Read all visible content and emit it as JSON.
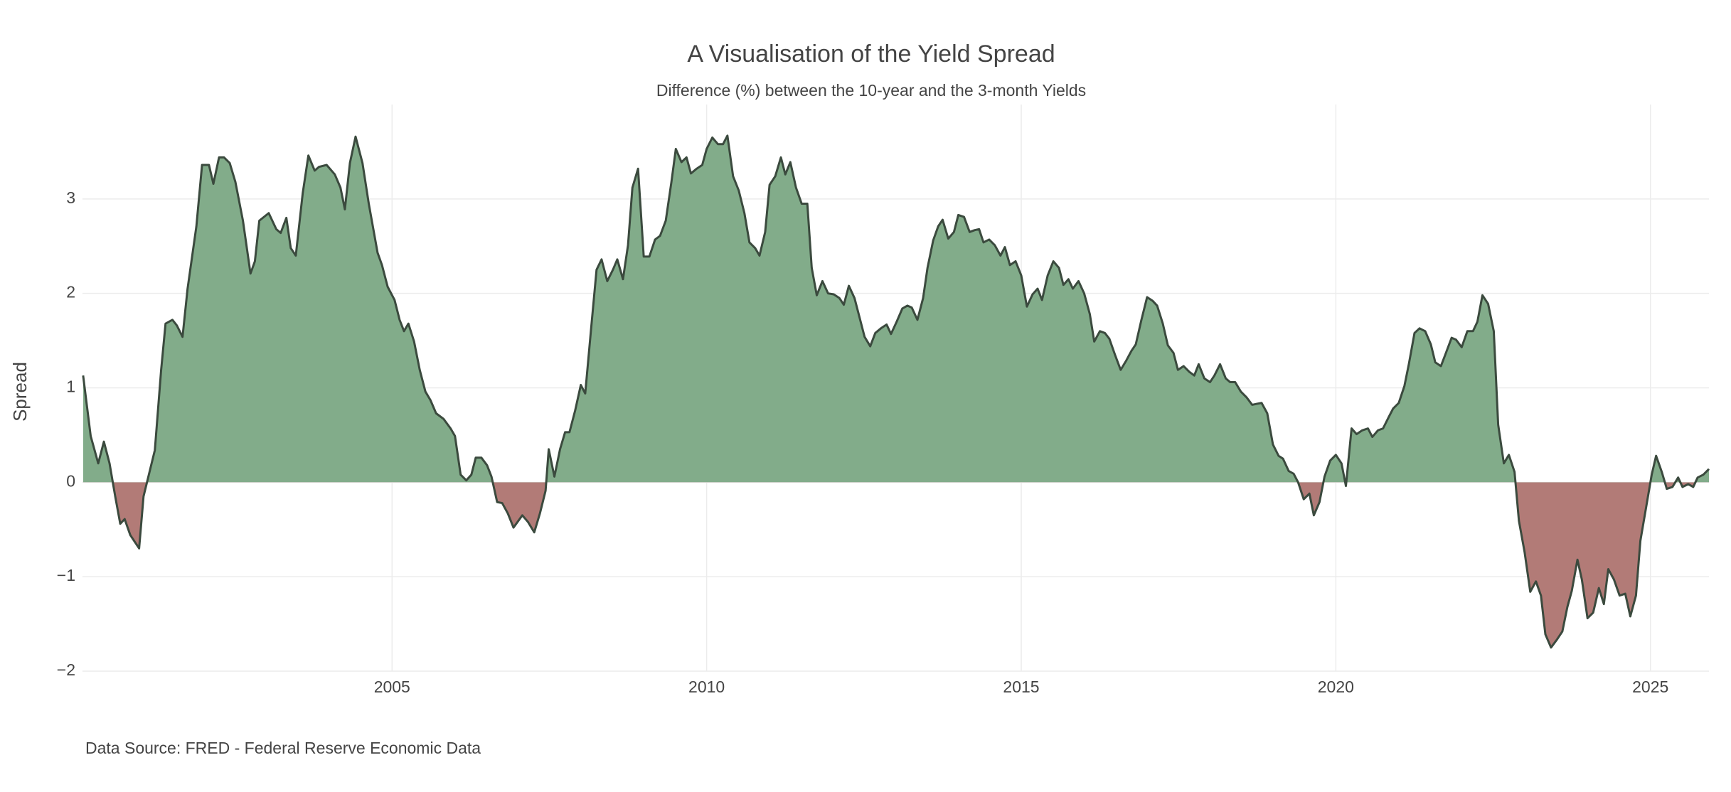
{
  "chart_data": {
    "type": "area",
    "title": "A Visualisation of the Yield Spread",
    "subtitle": "Difference (%) between the 10-year and the 3-month Yields",
    "y_label": "Spread",
    "source": "Data Source: FRED - Federal Reserve Economic Data",
    "positive_color": "#82ac8a",
    "negative_color": "#b27b77",
    "line_color": "#3b4a3e",
    "grid": true,
    "xlim": [
      2000.08,
      2025.93
    ],
    "xticks": [
      2005,
      2010,
      2015,
      2020,
      2025
    ],
    "ylim": [
      -2,
      4
    ],
    "yticks": [
      {
        "value": -2,
        "label": "−2"
      },
      {
        "value": -1,
        "label": "−1"
      },
      0,
      1,
      2,
      3
    ],
    "x": [
      2000.09,
      2000.21,
      2000.33,
      2000.42,
      2000.51,
      2000.6,
      2000.68,
      2000.75,
      2000.84,
      2000.98,
      2001.05,
      2001.23,
      2001.33,
      2001.4,
      2001.51,
      2001.58,
      2001.67,
      2001.75,
      2001.89,
      2001.98,
      2002.09,
      2002.16,
      2002.25,
      2002.33,
      2002.42,
      2002.51,
      2002.63,
      2002.75,
      2002.82,
      2002.89,
      2003.04,
      2003.16,
      2003.23,
      2003.32,
      2003.39,
      2003.47,
      2003.58,
      2003.67,
      2003.77,
      2003.84,
      2003.96,
      2004.09,
      2004.18,
      2004.25,
      2004.33,
      2004.42,
      2004.53,
      2004.63,
      2004.77,
      2004.84,
      2004.93,
      2005.04,
      2005.12,
      2005.19,
      2005.26,
      2005.35,
      2005.44,
      2005.53,
      2005.61,
      2005.7,
      2005.82,
      2005.93,
      2006.0,
      2006.09,
      2006.18,
      2006.26,
      2006.33,
      2006.42,
      2006.51,
      2006.58,
      2006.67,
      2006.75,
      2006.84,
      2006.93,
      2007.07,
      2007.16,
      2007.26,
      2007.35,
      2007.44,
      2007.49,
      2007.58,
      2007.67,
      2007.75,
      2007.82,
      2007.91,
      2008.0,
      2008.07,
      2008.16,
      2008.25,
      2008.33,
      2008.42,
      2008.51,
      2008.58,
      2008.67,
      2008.75,
      2008.82,
      2008.91,
      2009.0,
      2009.09,
      2009.18,
      2009.26,
      2009.35,
      2009.44,
      2009.51,
      2009.6,
      2009.68,
      2009.75,
      2009.84,
      2009.93,
      2010.0,
      2010.09,
      2010.18,
      2010.26,
      2010.33,
      2010.42,
      2010.51,
      2010.6,
      2010.68,
      2010.77,
      2010.84,
      2010.93,
      2011.0,
      2011.09,
      2011.18,
      2011.25,
      2011.33,
      2011.42,
      2011.51,
      2011.6,
      2011.67,
      2011.75,
      2011.84,
      2011.93,
      2012.02,
      2012.11,
      2012.18,
      2012.26,
      2012.35,
      2012.44,
      2012.51,
      2012.6,
      2012.68,
      2012.77,
      2012.86,
      2012.93,
      2013.02,
      2013.11,
      2013.19,
      2013.26,
      2013.35,
      2013.44,
      2013.51,
      2013.6,
      2013.68,
      2013.75,
      2013.84,
      2013.93,
      2014.0,
      2014.09,
      2014.18,
      2014.26,
      2014.33,
      2014.4,
      2014.49,
      2014.58,
      2014.67,
      2014.74,
      2014.82,
      2014.91,
      2015.0,
      2015.09,
      2015.18,
      2015.26,
      2015.33,
      2015.42,
      2015.51,
      2015.6,
      2015.67,
      2015.75,
      2015.82,
      2015.91,
      2016.0,
      2016.09,
      2016.16,
      2016.25,
      2016.33,
      2016.4,
      2016.49,
      2016.58,
      2016.67,
      2016.75,
      2016.82,
      2016.91,
      2017.0,
      2017.09,
      2017.16,
      2017.25,
      2017.33,
      2017.42,
      2017.49,
      2017.58,
      2017.67,
      2017.75,
      2017.82,
      2017.91,
      2018.0,
      2018.07,
      2018.16,
      2018.25,
      2018.32,
      2018.4,
      2018.49,
      2018.58,
      2018.67,
      2018.74,
      2018.82,
      2018.91,
      2019.0,
      2019.09,
      2019.16,
      2019.25,
      2019.33,
      2019.4,
      2019.49,
      2019.58,
      2019.65,
      2019.74,
      2019.82,
      2019.91,
      2020.0,
      2020.09,
      2020.16,
      2020.25,
      2020.33,
      2020.42,
      2020.51,
      2020.58,
      2020.67,
      2020.75,
      2020.84,
      2020.91,
      2021.0,
      2021.09,
      2021.16,
      2021.25,
      2021.33,
      2021.42,
      2021.51,
      2021.58,
      2021.67,
      2021.75,
      2021.84,
      2021.91,
      2022.0,
      2022.09,
      2022.18,
      2022.25,
      2022.33,
      2022.42,
      2022.51,
      2022.58,
      2022.67,
      2022.75,
      2022.84,
      2022.91,
      2023.0,
      2023.09,
      2023.18,
      2023.26,
      2023.33,
      2023.42,
      2023.51,
      2023.6,
      2023.68,
      2023.75,
      2023.84,
      2023.91,
      2024.0,
      2024.09,
      2024.18,
      2024.26,
      2024.33,
      2024.42,
      2024.51,
      2024.6,
      2024.68,
      2024.77,
      2024.84,
      2024.93,
      2025.02,
      2025.09,
      2025.18,
      2025.26,
      2025.35,
      2025.44,
      2025.51,
      2025.6,
      2025.68,
      2025.75,
      2025.84,
      2025.93
    ],
    "values": [
      1.13,
      0.49,
      0.2,
      0.43,
      0.2,
      -0.15,
      -0.44,
      -0.39,
      -0.56,
      -0.7,
      -0.15,
      0.34,
      1.19,
      1.68,
      1.72,
      1.66,
      1.54,
      2.05,
      2.71,
      3.36,
      3.36,
      3.16,
      3.44,
      3.44,
      3.38,
      3.18,
      2.77,
      2.21,
      2.34,
      2.77,
      2.85,
      2.68,
      2.64,
      2.8,
      2.48,
      2.4,
      3.06,
      3.46,
      3.3,
      3.34,
      3.36,
      3.26,
      3.12,
      2.89,
      3.38,
      3.66,
      3.38,
      2.95,
      2.43,
      2.3,
      2.07,
      1.93,
      1.72,
      1.6,
      1.68,
      1.49,
      1.19,
      0.96,
      0.87,
      0.73,
      0.67,
      0.57,
      0.49,
      0.08,
      0.02,
      0.08,
      0.26,
      0.26,
      0.18,
      0.06,
      -0.21,
      -0.22,
      -0.33,
      -0.48,
      -0.35,
      -0.42,
      -0.53,
      -0.33,
      -0.09,
      0.35,
      0.06,
      0.35,
      0.53,
      0.53,
      0.76,
      1.03,
      0.94,
      1.6,
      2.25,
      2.36,
      2.13,
      2.25,
      2.36,
      2.15,
      2.51,
      3.12,
      3.32,
      2.39,
      2.39,
      2.57,
      2.61,
      2.77,
      3.18,
      3.53,
      3.39,
      3.44,
      3.27,
      3.32,
      3.36,
      3.53,
      3.65,
      3.58,
      3.58,
      3.67,
      3.24,
      3.09,
      2.85,
      2.54,
      2.48,
      2.4,
      2.65,
      3.15,
      3.24,
      3.44,
      3.26,
      3.39,
      3.12,
      2.95,
      2.95,
      2.27,
      1.98,
      2.13,
      2.0,
      1.99,
      1.95,
      1.88,
      2.08,
      1.95,
      1.72,
      1.54,
      1.44,
      1.58,
      1.63,
      1.67,
      1.57,
      1.7,
      1.84,
      1.87,
      1.85,
      1.72,
      1.95,
      2.27,
      2.56,
      2.71,
      2.78,
      2.58,
      2.65,
      2.83,
      2.81,
      2.65,
      2.67,
      2.68,
      2.54,
      2.57,
      2.51,
      2.4,
      2.49,
      2.3,
      2.34,
      2.19,
      1.86,
      1.99,
      2.05,
      1.93,
      2.19,
      2.34,
      2.27,
      2.09,
      2.15,
      2.05,
      2.13,
      2.0,
      1.78,
      1.49,
      1.6,
      1.58,
      1.52,
      1.35,
      1.19,
      1.29,
      1.39,
      1.46,
      1.72,
      1.96,
      1.92,
      1.87,
      1.68,
      1.45,
      1.37,
      1.19,
      1.23,
      1.17,
      1.13,
      1.25,
      1.1,
      1.06,
      1.13,
      1.25,
      1.1,
      1.06,
      1.06,
      0.96,
      0.9,
      0.82,
      0.83,
      0.84,
      0.73,
      0.4,
      0.28,
      0.25,
      0.12,
      0.09,
      0.0,
      -0.18,
      -0.12,
      -0.35,
      -0.21,
      0.06,
      0.23,
      0.29,
      0.2,
      -0.04,
      0.57,
      0.51,
      0.55,
      0.57,
      0.48,
      0.55,
      0.57,
      0.69,
      0.78,
      0.84,
      1.02,
      1.25,
      1.58,
      1.63,
      1.6,
      1.46,
      1.27,
      1.23,
      1.37,
      1.53,
      1.51,
      1.43,
      1.6,
      1.6,
      1.7,
      1.98,
      1.89,
      1.6,
      0.61,
      0.2,
      0.29,
      0.11,
      -0.41,
      -0.74,
      -1.16,
      -1.05,
      -1.2,
      -1.61,
      -1.75,
      -1.67,
      -1.58,
      -1.32,
      -1.15,
      -0.82,
      -1.03,
      -1.44,
      -1.38,
      -1.12,
      -1.29,
      -0.92,
      -1.03,
      -1.2,
      -1.18,
      -1.42,
      -1.2,
      -0.62,
      -0.27,
      0.08,
      0.28,
      0.11,
      -0.07,
      -0.05,
      0.05,
      -0.05,
      -0.02,
      -0.05,
      0.05,
      0.08,
      0.14
    ]
  }
}
